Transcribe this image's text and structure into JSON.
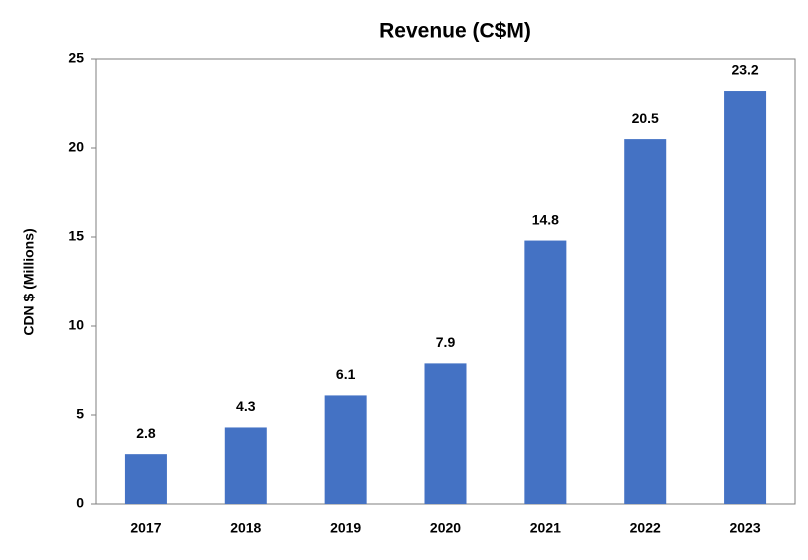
{
  "chart_data": {
    "type": "bar",
    "title": "Revenue (C$M)",
    "y_label": "CDN $ (Millions)",
    "categories": [
      "2017",
      "2018",
      "2019",
      "2020",
      "2021",
      "2022",
      "2023"
    ],
    "values": [
      2.8,
      4.3,
      6.1,
      7.9,
      14.8,
      20.5,
      23.2
    ],
    "color": "#4472c4",
    "ylim": [
      0,
      25
    ],
    "yticks": [
      0,
      5,
      10,
      15,
      20,
      25
    ],
    "grid": false,
    "data_labels": true
  }
}
